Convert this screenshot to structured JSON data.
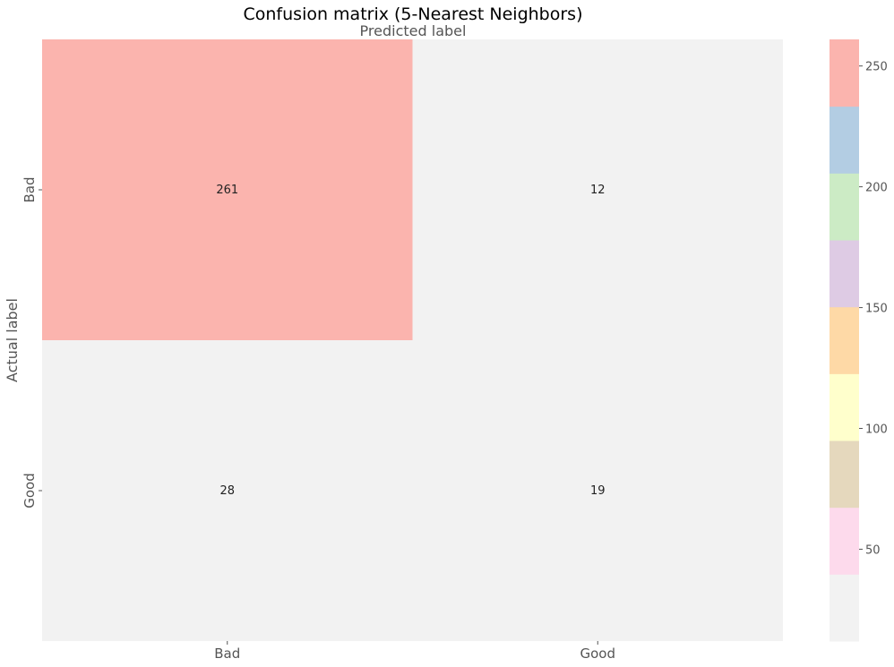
{
  "chart_data": {
    "type": "heatmap",
    "title": "Confusion matrix (5-Nearest Neighbors)",
    "xlabel": "Predicted label",
    "ylabel": "Actual label",
    "x_categories": [
      "Bad",
      "Good"
    ],
    "y_categories": [
      "Bad",
      "Good"
    ],
    "values": [
      [
        261,
        12
      ],
      [
        28,
        19
      ]
    ],
    "colorbar": {
      "range": [
        12,
        261
      ],
      "ticks": [
        50,
        100,
        150,
        200,
        250
      ],
      "colormap": [
        "#f2f2f2",
        "#fddaec",
        "#e5d8bd",
        "#ffffcc",
        "#fed9a6",
        "#decbe4",
        "#ccebc5",
        "#b3cde3",
        "#fbb4ae"
      ]
    },
    "grid": false
  }
}
